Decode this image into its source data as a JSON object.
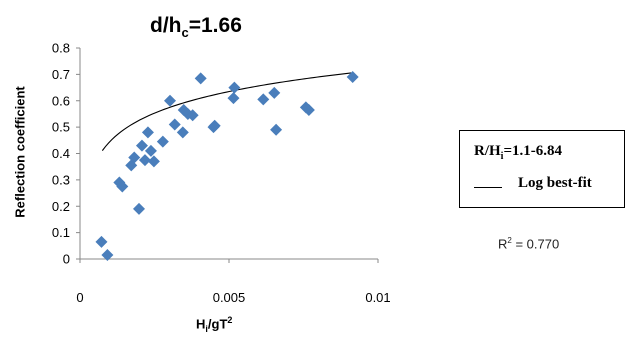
{
  "title": {
    "main": "d/h",
    "sub": "c",
    "tail": "=1.66"
  },
  "xlabel": {
    "main": "H",
    "sub": "i",
    "mid": "/gT",
    "sup": "2"
  },
  "ylabel": "Reflection coefficient",
  "legend": {
    "range_main": "R/H",
    "range_sub": "i",
    "range_tail": "=1.1-6.84",
    "fit_label": "Log best-fit"
  },
  "r2": {
    "pre": "R",
    "sup": "2",
    "tail": " = 0.770"
  },
  "colors": {
    "marker": "#4a7ebb",
    "fit": "#000000"
  },
  "chart_data": {
    "type": "scatter",
    "xlim": [
      0,
      0.01
    ],
    "ylim": [
      0,
      0.8
    ],
    "x_ticks": [
      0,
      0.005,
      0.01
    ],
    "x_tick_labels": [
      "0",
      "0.005",
      "0.01"
    ],
    "y_ticks": [
      0,
      0.1,
      0.2,
      0.3,
      0.4,
      0.5,
      0.6,
      0.7,
      0.8
    ],
    "y_tick_labels": [
      "0",
      "0.1",
      "0.2",
      "0.3",
      "0.4",
      "0.5",
      "0.6",
      "0.7",
      "0.8"
    ],
    "grid": false,
    "legend_position": "right",
    "series": [
      {
        "marker": "diamond",
        "points": [
          {
            "x": 0.00072,
            "y": 0.065
          },
          {
            "x": 0.00092,
            "y": 0.015
          },
          {
            "x": 0.00132,
            "y": 0.29
          },
          {
            "x": 0.00142,
            "y": 0.275
          },
          {
            "x": 0.00172,
            "y": 0.355
          },
          {
            "x": 0.00182,
            "y": 0.385
          },
          {
            "x": 0.00198,
            "y": 0.19
          },
          {
            "x": 0.00208,
            "y": 0.43
          },
          {
            "x": 0.00218,
            "y": 0.375
          },
          {
            "x": 0.00228,
            "y": 0.48
          },
          {
            "x": 0.00238,
            "y": 0.41
          },
          {
            "x": 0.00248,
            "y": 0.37
          },
          {
            "x": 0.00278,
            "y": 0.445
          },
          {
            "x": 0.00302,
            "y": 0.6
          },
          {
            "x": 0.00318,
            "y": 0.51
          },
          {
            "x": 0.00345,
            "y": 0.48
          },
          {
            "x": 0.00348,
            "y": 0.565
          },
          {
            "x": 0.00362,
            "y": 0.55
          },
          {
            "x": 0.00378,
            "y": 0.545
          },
          {
            "x": 0.00405,
            "y": 0.685
          },
          {
            "x": 0.00448,
            "y": 0.5
          },
          {
            "x": 0.00452,
            "y": 0.505
          },
          {
            "x": 0.00515,
            "y": 0.61
          },
          {
            "x": 0.00518,
            "y": 0.65
          },
          {
            "x": 0.00615,
            "y": 0.605
          },
          {
            "x": 0.00652,
            "y": 0.63
          },
          {
            "x": 0.00658,
            "y": 0.49
          },
          {
            "x": 0.00758,
            "y": 0.575
          },
          {
            "x": 0.00768,
            "y": 0.565
          },
          {
            "x": 0.00915,
            "y": 0.69
          }
        ]
      }
    ],
    "fit": {
      "type": "log",
      "a": 1.26,
      "b": 0.118,
      "x_range": [
        0.00075,
        0.0091
      ]
    }
  }
}
